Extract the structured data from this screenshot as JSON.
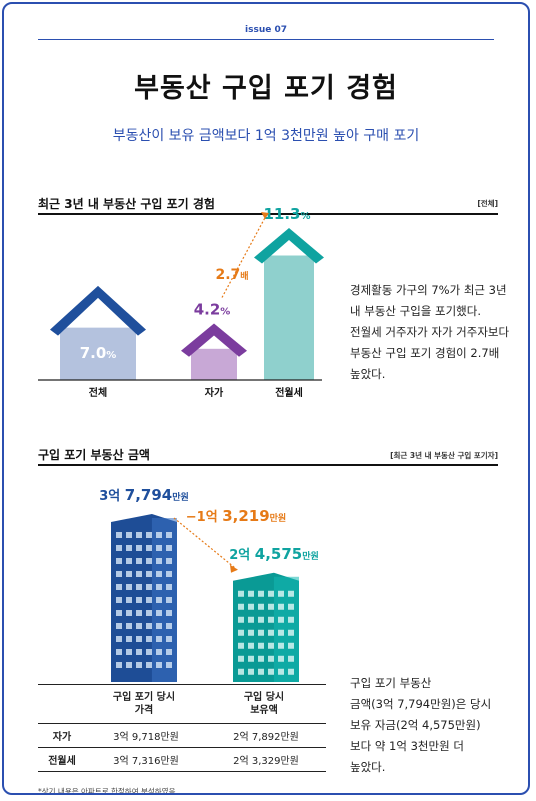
{
  "header": {
    "issue": "issue 07",
    "title": "부동산 구입 포기 경험",
    "subtitle": "부동산이 보유 금액보다 1억 3천만원 높아 구매 포기"
  },
  "section1": {
    "title": "최근 3년 내 부동산 구입 포기 경험",
    "tag": "[전체]",
    "desc": [
      "경제활동 가구의 7%가 최근 3년",
      "내 부동산 구입을 포기했다.",
      "전월세 거주자가 자가 거주자보다",
      "부동산 구입 포기 경험이 2.7배",
      "높았다."
    ],
    "ratio_num": "2.7",
    "ratio_unit": "배",
    "colors": {
      "total": "#1f4f9c",
      "owned": "#7b3c9e",
      "rent": "#0fa3a0",
      "ratio": "#e67a17"
    }
  },
  "chart_data": [
    {
      "type": "bar",
      "title": "최근 3년 내 부동산 구입 포기 경험",
      "categories": [
        "전체",
        "자가",
        "전월세"
      ],
      "values": [
        7.0,
        4.2,
        11.3
      ],
      "value_labels": [
        {
          "num": "7.0",
          "unit": "%"
        },
        {
          "num": "4.2",
          "unit": "%"
        },
        {
          "num": "11.3",
          "unit": "%"
        }
      ],
      "ylim": [
        0,
        11.3
      ]
    },
    {
      "type": "bar",
      "title": "구입 포기 부동산 금액",
      "categories": [
        "구입 포기 당시 가격",
        "구입 당시 보유액"
      ],
      "values": [
        37794,
        24575
      ],
      "unit": "만원",
      "value_labels": [
        {
          "eok": "3억",
          "man": "7,794",
          "unit": "만원"
        },
        {
          "eok": "2억",
          "man": "4,575",
          "unit": "만원"
        }
      ],
      "difference": {
        "eok": "−1억",
        "man": "3,219",
        "unit": "만원"
      },
      "ylim": [
        0,
        37794
      ]
    }
  ],
  "section2": {
    "title": "구입 포기 부동산 금액",
    "tag": "[최근 3년 내 부동산 구입 포기자]",
    "desc": [
      "구입 포기 부동산",
      "금액(3억 7,794만원)은 당시",
      "보유 자금(2억 4,575만원)",
      "보다 약 1억 3천만원 더",
      "높았다."
    ],
    "colors": {
      "price": "#1f4f9c",
      "held": "#0fa3a0",
      "diff": "#e67a17"
    },
    "table": {
      "headers": [
        [
          "구입 포기 당시",
          "가격"
        ],
        [
          "구입 당시",
          "보유액"
        ]
      ],
      "rows": [
        {
          "label": "자가",
          "price": "3억 9,718만원",
          "held": "2억 7,892만원"
        },
        {
          "label": "전월세",
          "price": "3억 7,316만원",
          "held": "2억 3,329만원"
        }
      ]
    }
  },
  "footnote": "*상기 내용은 아파트로 한정하여 분석하였음"
}
